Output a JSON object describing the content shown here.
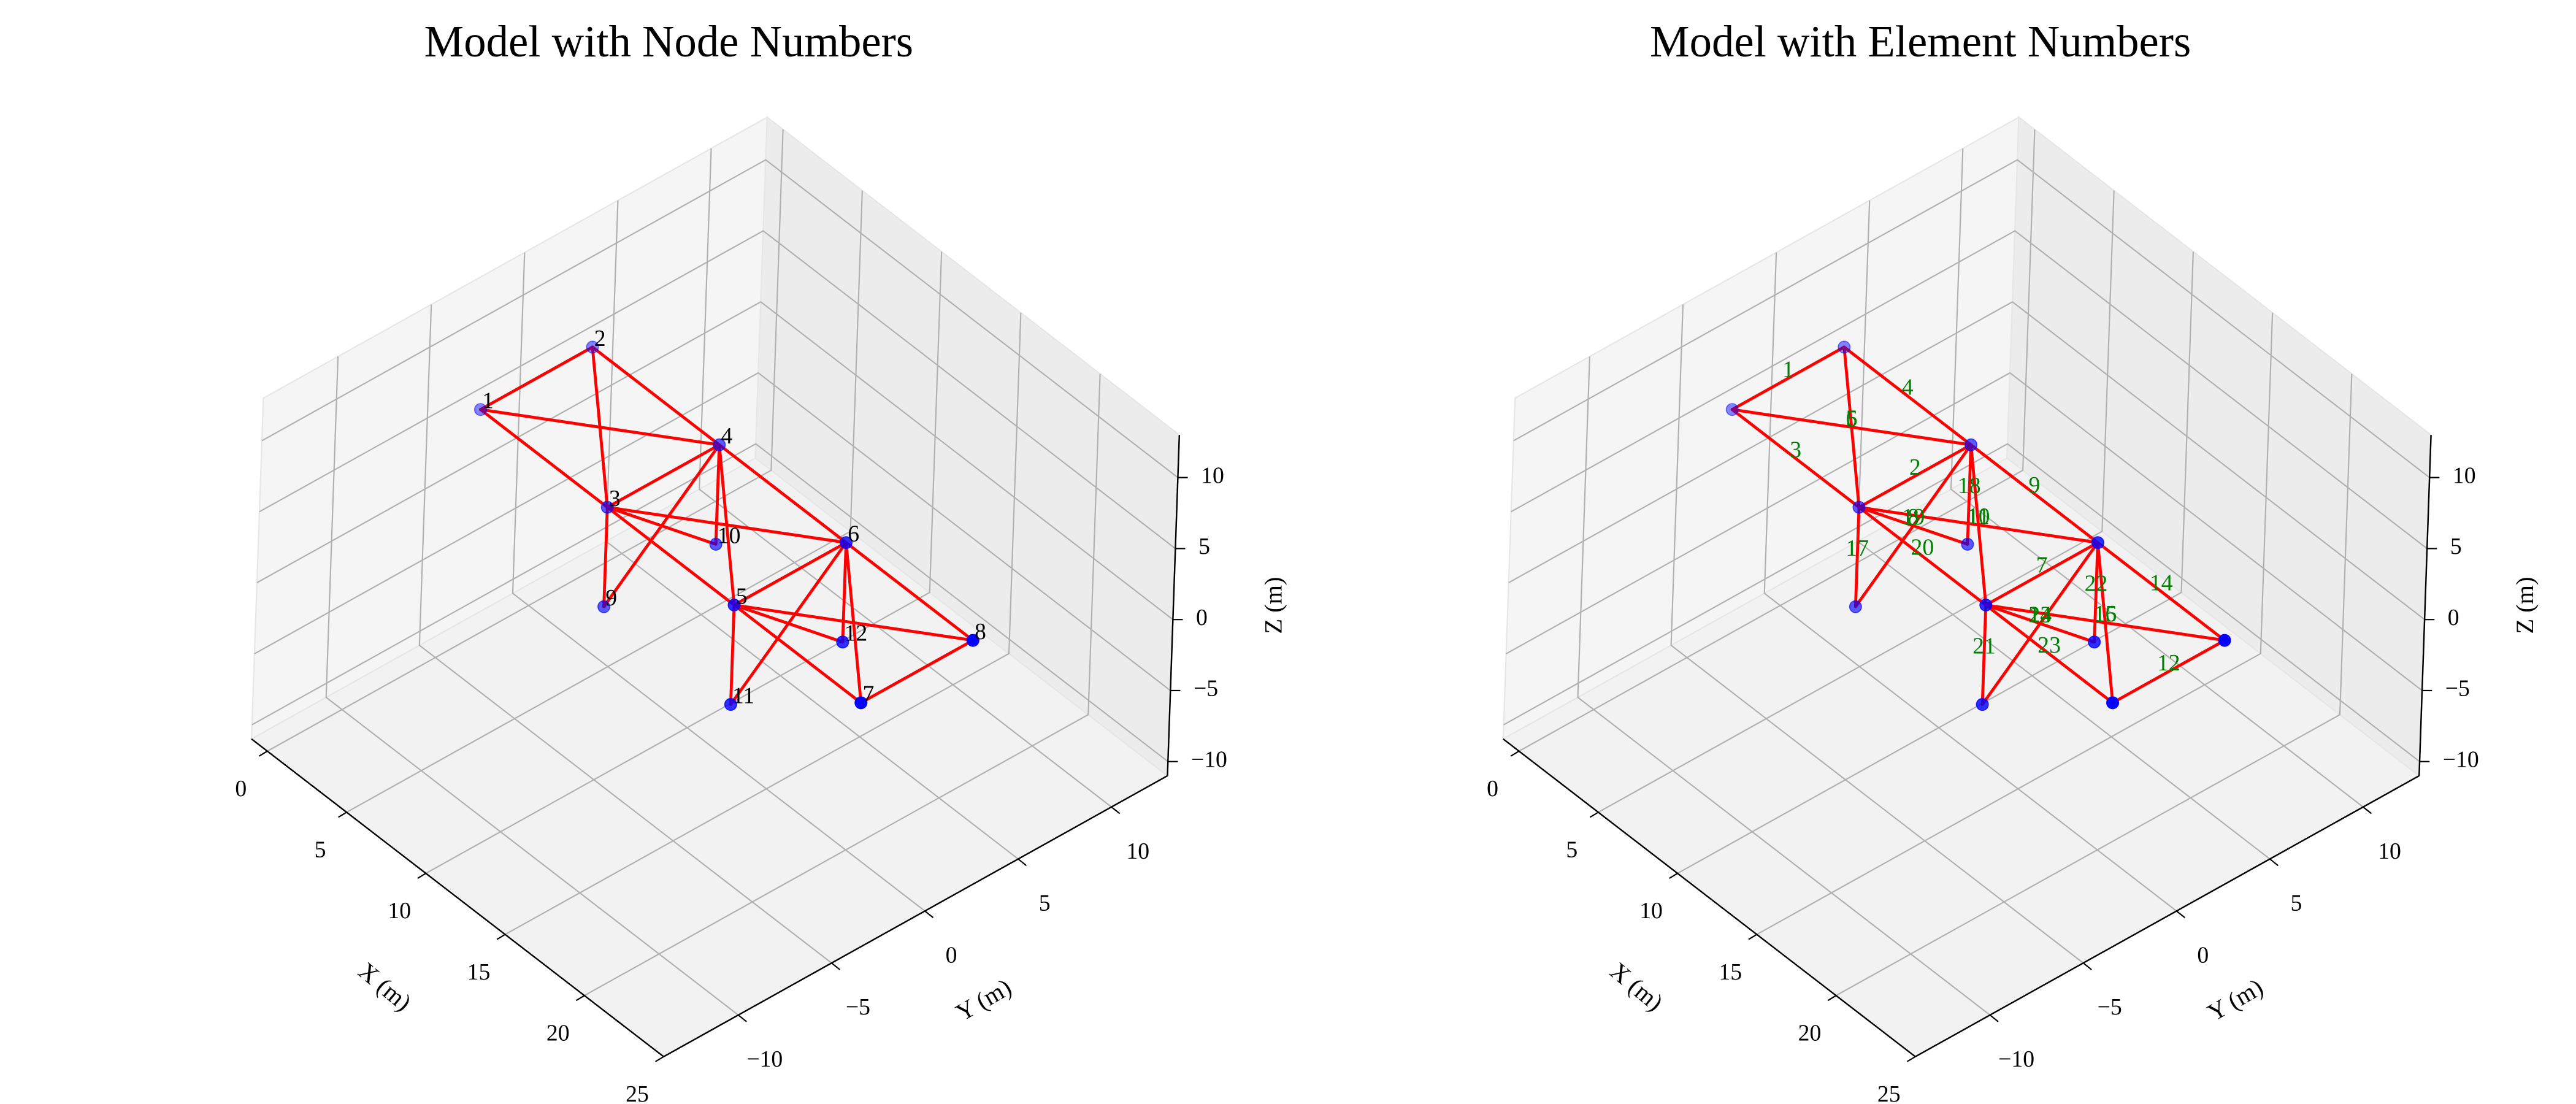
{
  "chart_data": [
    {
      "type": "3d-wireframe",
      "title": "Model with Node Numbers",
      "xlabel": "X (m)",
      "ylabel": "Y (m)",
      "zlabel": "Z (m)",
      "xlim": [
        -1,
        25
      ],
      "ylim": [
        -14,
        13
      ],
      "zlim": [
        -11,
        13
      ],
      "xticks": [
        0,
        5,
        10,
        15,
        20,
        25
      ],
      "yticks": [
        {
          "value": -10,
          "label": "−10"
        },
        {
          "value": -5,
          "label": "−5"
        },
        0,
        5,
        10
      ],
      "zticks": [
        {
          "value": -10,
          "label": "−10"
        },
        {
          "value": -5,
          "label": "−5"
        },
        0,
        5,
        10
      ],
      "grid": true,
      "nodes": {
        "labels": [
          "1",
          "2",
          "3",
          "4",
          "5",
          "6",
          "7",
          "8",
          "9",
          "10",
          "11",
          "12"
        ],
        "x": [
          0,
          0,
          8,
          8,
          16,
          16,
          24,
          24,
          8,
          8,
          16,
          16
        ],
        "y": [
          -3,
          3,
          -3,
          3,
          -3,
          3,
          -3,
          3,
          -3,
          3,
          -3,
          3
        ],
        "z": [
          5,
          5,
          5,
          5,
          5,
          5,
          5,
          5,
          -2,
          -2,
          -2,
          -2
        ],
        "color": "#0000ff",
        "label_color": "#000000"
      },
      "elements": {
        "start": [
          1,
          3,
          1,
          2,
          1,
          2,
          5,
          3,
          4,
          4,
          3,
          7,
          5,
          6,
          5,
          6,
          3,
          4,
          4,
          3,
          5,
          6,
          5,
          6
        ],
        "end": [
          2,
          4,
          3,
          4,
          4,
          3,
          6,
          10,
          6,
          5,
          6,
          8,
          12,
          8,
          8,
          7,
          9,
          10,
          9,
          5,
          11,
          12,
          7,
          11
        ],
        "color": "#ff0000"
      }
    },
    {
      "type": "3d-wireframe",
      "title": "Model with Element Numbers",
      "xlabel": "X (m)",
      "ylabel": "Y (m)",
      "zlabel": "Z (m)",
      "xlim": [
        -1,
        25
      ],
      "ylim": [
        -14,
        13
      ],
      "zlim": [
        -11,
        13
      ],
      "xticks": [
        0,
        5,
        10,
        15,
        20,
        25
      ],
      "yticks": [
        {
          "value": -10,
          "label": "−10"
        },
        {
          "value": -5,
          "label": "−5"
        },
        0,
        5,
        10
      ],
      "zticks": [
        {
          "value": -10,
          "label": "−10"
        },
        {
          "value": -5,
          "label": "−5"
        },
        0,
        5,
        10
      ],
      "grid": true,
      "nodes": {
        "x": [
          0,
          0,
          8,
          8,
          16,
          16,
          24,
          24,
          8,
          8,
          16,
          16
        ],
        "y": [
          -3,
          3,
          -3,
          3,
          -3,
          3,
          -3,
          3,
          -3,
          3,
          -3,
          3
        ],
        "z": [
          5,
          5,
          5,
          5,
          5,
          5,
          5,
          5,
          -2,
          -2,
          -2,
          -2
        ],
        "color": "#0000ff"
      },
      "elements": {
        "start": [
          1,
          3,
          1,
          2,
          1,
          2,
          5,
          3,
          4,
          4,
          3,
          7,
          5,
          6,
          5,
          6,
          3,
          4,
          4,
          3,
          5,
          6,
          5,
          6
        ],
        "end": [
          2,
          4,
          3,
          4,
          4,
          3,
          6,
          10,
          6,
          5,
          6,
          8,
          12,
          8,
          8,
          7,
          9,
          10,
          9,
          5,
          11,
          12,
          7,
          11
        ],
        "labels": [
          "1",
          "2",
          "3",
          "4",
          "5",
          "6",
          "7",
          "8",
          "9",
          "10",
          "11",
          "12",
          "13",
          "14",
          "15",
          "16",
          "17",
          "18",
          "19",
          "20",
          "21",
          "22",
          "23",
          "24"
        ],
        "color": "#ff0000",
        "label_color": "#008000"
      }
    }
  ]
}
